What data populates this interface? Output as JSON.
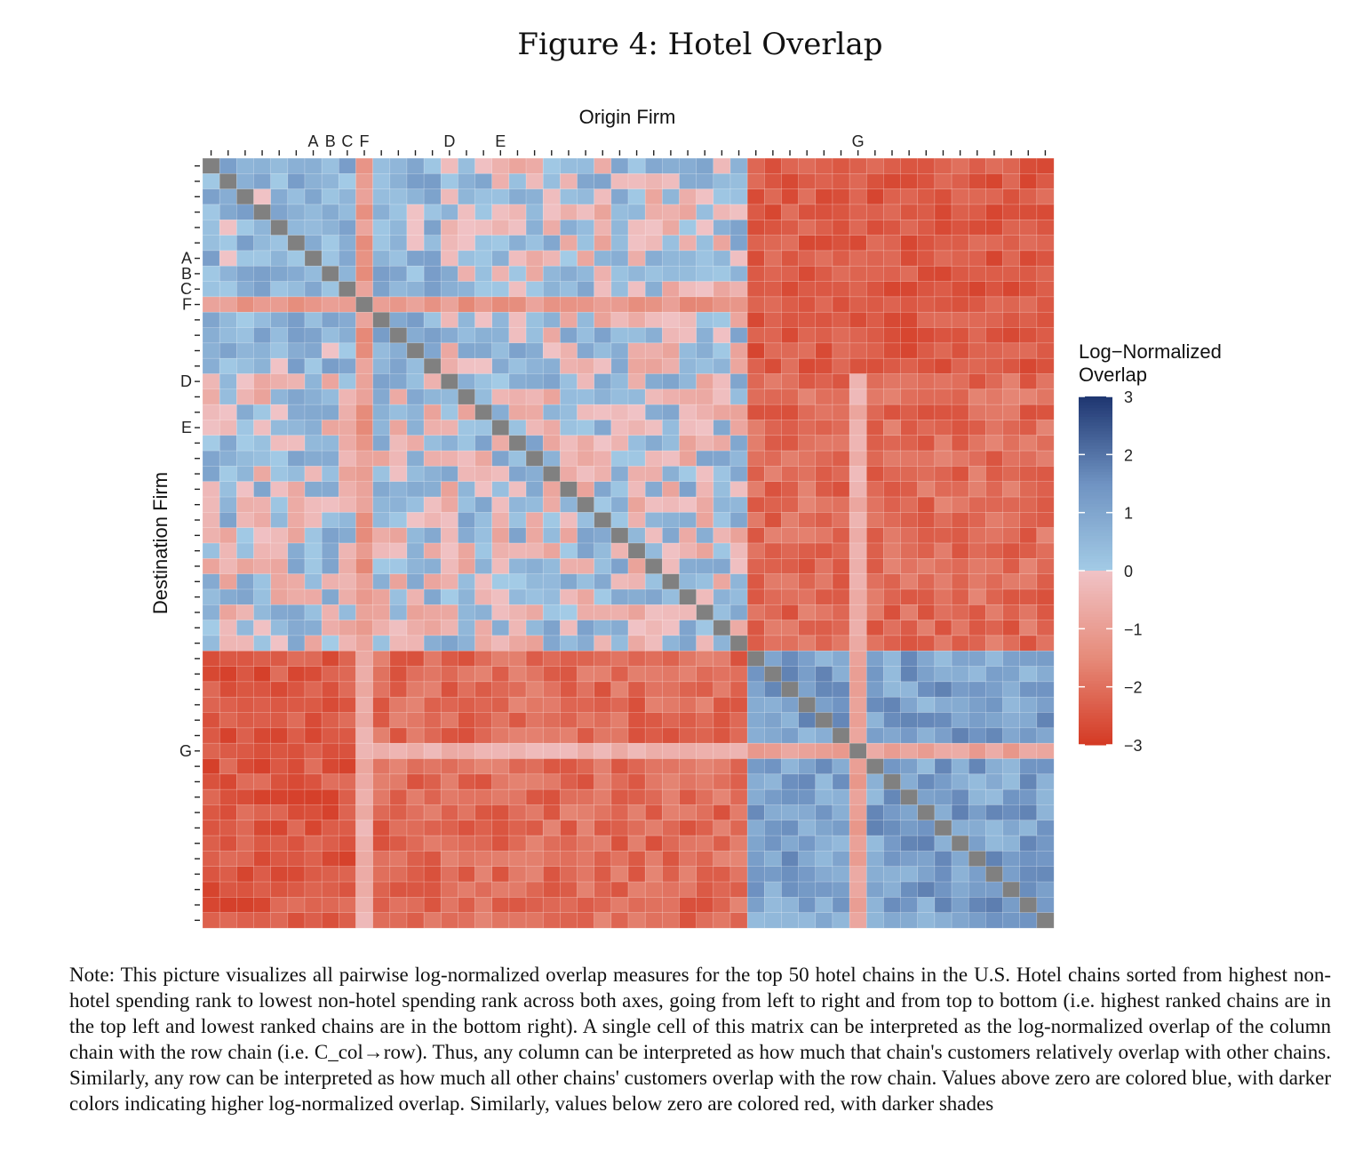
{
  "figure": {
    "title": "Figure 4: Hotel Overlap",
    "note": "Note: This picture visualizes all pairwise log-normalized overlap measures for the top 50 hotel chains in the U.S. Hotel chains sorted from highest non-hotel spending rank to lowest non-hotel spending rank across both axes, going from left to right and from top to bottom (i.e. highest ranked chains are in the top left and lowest ranked chains are in the bottom right). A single cell of this matrix can be interpreted as the log-normalized overlap of the column chain with the row chain (i.e. C_col→row). Thus, any column can be interpreted as how much that chain's customers relatively overlap with other chains. Similarly, any row can be interpreted as how much all other chains' customers overlap with the row chain. Values above zero are colored blue, with darker colors indicating higher log-normalized overlap. Similarly, values below zero are colored red, with darker shades"
  },
  "chart_data": {
    "type": "heatmap",
    "title": "",
    "xlabel": "Origin Firm",
    "ylabel": "Destination Firm",
    "n": 50,
    "labeled_indices": {
      "A": 6,
      "B": 7,
      "C": 8,
      "F": 9,
      "D": 14,
      "E": 17,
      "G": 38
    },
    "legend": {
      "title": "Log−Normalized Overlap",
      "ticks": [
        3,
        2,
        1,
        0,
        -1,
        -2,
        -3
      ],
      "tick_labels": [
        "3",
        "2",
        "1",
        "0",
        "−1",
        "−2",
        "−3"
      ],
      "range": [
        -3,
        3
      ],
      "placement": "right"
    },
    "colors": {
      "diagonal": "#808080",
      "neg_light": "#f0c3c6",
      "neg_mid": "#e68b7a",
      "neg_dark": "#d43a24",
      "pos_light": "#a3cbe6",
      "pos_mid": "#6f93c2",
      "pos_dark": "#1e3570"
    },
    "groups": {
      "upper": {
        "start": 0,
        "end": 31
      },
      "lower": {
        "start": 32,
        "end": 49
      }
    },
    "sample_values": {
      "within_upper": "mostly 0.5 to 1.5 in top-left block, mixed -0.8 to 1 elsewhere",
      "within_lower": "mostly 0.5 to 2",
      "cross_group": "mostly -1 to -2.7"
    },
    "row_means": [
      0.6,
      0.7,
      0.5,
      0.6,
      0.8,
      1.1,
      1.2,
      1.1,
      0.6,
      -1.3,
      0.6,
      0.6,
      0.7,
      0.5,
      -0.3,
      -0.3,
      0.3,
      -0.2,
      0.2,
      0.1,
      -0.4,
      -0.2,
      -0.4,
      0.1,
      -0.3,
      0.2,
      -0.5,
      0.1,
      -0.4,
      0.1,
      -0.2,
      0.4,
      0.6,
      0.7,
      0.8,
      0.6,
      0.4,
      0.9,
      -1.0,
      1.0,
      1.1,
      1.3,
      1.6,
      1.5,
      1.5,
      1.4,
      1.3,
      1.2,
      1.1,
      0.9
    ]
  }
}
